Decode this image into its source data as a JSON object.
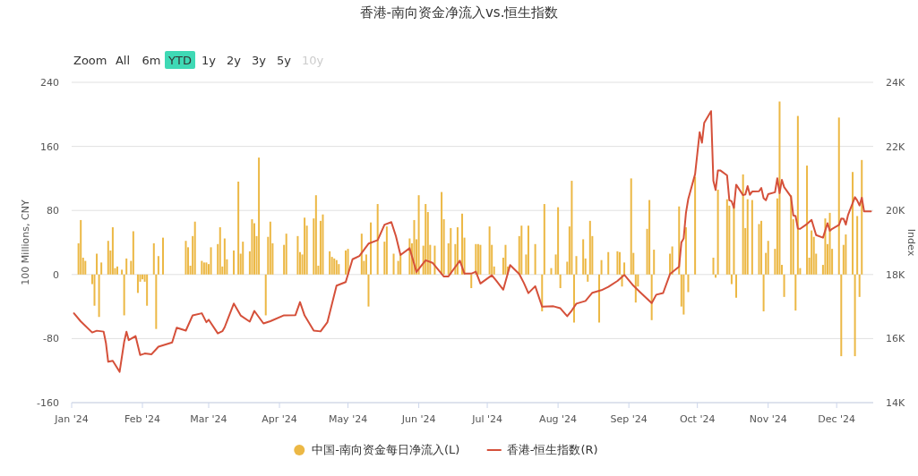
{
  "chart_data": {
    "type": "bar",
    "title": "香港-南向资金净流入vs.恒生指数",
    "annotations": [
      "Zoom",
      "All",
      "6m",
      "YTD",
      "1y",
      "2y",
      "3y",
      "5y",
      "10y"
    ],
    "ylabel": "100 Millions, CNY",
    "y2label": "Index",
    "xlim": [
      "2024-01-01",
      "2024-12-17"
    ],
    "xticks": [
      {
        "value": "2024-01-01",
        "label": "Jan '24"
      },
      {
        "value": "2024-02-01",
        "label": "Feb '24"
      },
      {
        "value": "2024-03-01",
        "label": "Mar '24"
      },
      {
        "value": "2024-04-01",
        "label": "Apr '24"
      },
      {
        "value": "2024-05-01",
        "label": "May '24"
      },
      {
        "value": "2024-06-01",
        "label": "Jun '24"
      },
      {
        "value": "2024-07-01",
        "label": "Jul '24"
      },
      {
        "value": "2024-08-01",
        "label": "Aug '24"
      },
      {
        "value": "2024-09-01",
        "label": "Sep '24"
      },
      {
        "value": "2024-10-01",
        "label": "Oct '24"
      },
      {
        "value": "2024-11-01",
        "label": "Nov '24"
      },
      {
        "value": "2024-12-01",
        "label": "Dec '24"
      }
    ],
    "ylim": [
      -160,
      240
    ],
    "yticks": [
      -160,
      -80,
      0,
      80,
      160,
      240
    ],
    "y2lim": [
      14000,
      24000
    ],
    "y2ticks": [
      {
        "value": 14000,
        "label": "14K"
      },
      {
        "value": 16000,
        "label": "16K"
      },
      {
        "value": 18000,
        "label": "18K"
      },
      {
        "value": 20000,
        "label": "20K"
      },
      {
        "value": 22000,
        "label": "22K"
      },
      {
        "value": 24000,
        "label": "24K"
      }
    ],
    "grid": "y",
    "legend": "bottom",
    "series": [
      {
        "name": "中国-南向资金每日净流入(L)",
        "color": "#ecb845",
        "x": [
          "2024-01-04",
          "2024-01-05",
          "2024-01-06",
          "2024-01-07",
          "2024-01-10",
          "2024-01-11",
          "2024-01-12",
          "2024-01-13",
          "2024-01-14",
          "2024-01-17",
          "2024-01-18",
          "2024-01-19",
          "2024-01-20",
          "2024-01-21",
          "2024-01-23",
          "2024-01-24",
          "2024-01-25",
          "2024-01-27",
          "2024-01-28",
          "2024-01-30",
          "2024-01-31",
          "2024-02-01",
          "2024-02-02",
          "2024-02-03",
          "2024-02-06",
          "2024-02-07",
          "2024-02-08",
          "2024-02-10",
          "2024-02-20",
          "2024-02-21",
          "2024-02-22",
          "2024-02-23",
          "2024-02-24",
          "2024-02-27",
          "2024-02-28",
          "2024-02-29",
          "2024-03-01",
          "2024-03-02",
          "2024-03-05",
          "2024-03-06",
          "2024-03-07",
          "2024-03-08",
          "2024-03-09",
          "2024-03-12",
          "2024-03-14",
          "2024-03-15",
          "2024-03-16",
          "2024-03-19",
          "2024-03-20",
          "2024-03-21",
          "2024-03-22",
          "2024-03-23",
          "2024-03-26",
          "2024-03-27",
          "2024-03-28",
          "2024-03-29",
          "2024-04-03",
          "2024-04-04",
          "2024-04-09",
          "2024-04-10",
          "2024-04-11",
          "2024-04-12",
          "2024-04-13",
          "2024-04-16",
          "2024-04-17",
          "2024-04-18",
          "2024-04-19",
          "2024-04-20",
          "2024-04-23",
          "2024-04-24",
          "2024-04-25",
          "2024-04-26",
          "2024-04-27",
          "2024-04-30",
          "2024-05-01",
          "2024-05-07",
          "2024-05-08",
          "2024-05-09",
          "2024-05-10",
          "2024-05-11",
          "2024-05-14",
          "2024-05-17",
          "2024-05-18",
          "2024-05-21",
          "2024-05-23",
          "2024-05-24",
          "2024-05-28",
          "2024-05-29",
          "2024-05-30",
          "2024-05-31",
          "2024-06-01",
          "2024-06-03",
          "2024-06-04",
          "2024-06-05",
          "2024-06-06",
          "2024-06-08",
          "2024-06-11",
          "2024-06-12",
          "2024-06-14",
          "2024-06-15",
          "2024-06-17",
          "2024-06-18",
          "2024-06-20",
          "2024-06-21",
          "2024-06-24",
          "2024-06-26",
          "2024-06-27",
          "2024-06-28",
          "2024-07-02",
          "2024-07-03",
          "2024-07-04",
          "2024-07-08",
          "2024-07-09",
          "2024-07-10",
          "2024-07-15",
          "2024-07-16",
          "2024-07-18",
          "2024-07-19",
          "2024-07-22",
          "2024-07-25",
          "2024-07-26",
          "2024-07-29",
          "2024-07-31",
          "2024-08-01",
          "2024-08-02",
          "2024-08-05",
          "2024-08-06",
          "2024-08-07",
          "2024-08-08",
          "2024-08-09",
          "2024-08-12",
          "2024-08-13",
          "2024-08-14",
          "2024-08-15",
          "2024-08-16",
          "2024-08-19",
          "2024-08-20",
          "2024-08-23",
          "2024-08-27",
          "2024-08-28",
          "2024-08-29",
          "2024-08-30",
          "2024-09-02",
          "2024-09-03",
          "2024-09-04",
          "2024-09-05",
          "2024-09-09",
          "2024-09-10",
          "2024-09-11",
          "2024-09-12",
          "2024-09-19",
          "2024-09-20",
          "2024-09-23",
          "2024-09-24",
          "2024-09-25",
          "2024-09-26",
          "2024-09-27",
          "2024-09-30",
          "2024-10-08",
          "2024-10-09",
          "2024-10-10",
          "2024-10-14",
          "2024-10-15",
          "2024-10-16",
          "2024-10-17",
          "2024-10-18",
          "2024-10-21",
          "2024-10-22",
          "2024-10-23",
          "2024-10-25",
          "2024-10-28",
          "2024-10-29",
          "2024-10-30",
          "2024-10-31",
          "2024-11-01",
          "2024-11-04",
          "2024-11-05",
          "2024-11-06",
          "2024-11-07",
          "2024-11-08",
          "2024-11-11",
          "2024-11-12",
          "2024-11-13",
          "2024-11-14",
          "2024-11-15",
          "2024-11-18",
          "2024-11-19",
          "2024-11-20",
          "2024-11-21",
          "2024-11-22",
          "2024-11-25",
          "2024-11-26",
          "2024-11-27",
          "2024-11-28",
          "2024-11-29",
          "2024-12-02",
          "2024-12-03",
          "2024-12-04",
          "2024-12-05",
          "2024-12-08",
          "2024-12-09",
          "2024-12-10",
          "2024-12-11",
          "2024-12-12"
        ],
        "values": [
          39,
          68,
          21,
          17,
          -12,
          -39,
          26,
          -53,
          15,
          42,
          30,
          59,
          8,
          10,
          6,
          -51,
          20,
          17,
          54,
          -23,
          -9,
          -6,
          -9,
          -39,
          39,
          -68,
          23,
          46,
          42,
          34,
          11,
          48,
          66,
          17,
          15,
          15,
          13,
          34,
          38,
          59,
          10,
          45,
          19,
          30,
          116,
          26,
          41,
          29,
          69,
          64,
          48,
          146,
          -51,
          47,
          66,
          39,
          37,
          51,
          48,
          28,
          25,
          71,
          61,
          70,
          99,
          11,
          67,
          75,
          29,
          22,
          20,
          18,
          13,
          30,
          32,
          51,
          17,
          25,
          -40,
          65,
          88,
          41,
          60,
          26,
          17,
          25,
          45,
          39,
          68,
          44,
          99,
          36,
          88,
          78,
          37,
          36,
          103,
          69,
          39,
          58,
          38,
          59,
          76,
          46,
          -17,
          38,
          38,
          37,
          60,
          37,
          10,
          21,
          37,
          10,
          48,
          61,
          25,
          61,
          38,
          -46,
          88,
          8,
          25,
          84,
          -17,
          16,
          60,
          117,
          -60,
          23,
          44,
          20,
          -9,
          67,
          48,
          -60,
          18,
          28,
          29,
          28,
          -15,
          15,
          120,
          27,
          -35,
          -15,
          57,
          93,
          -57,
          31,
          26,
          35,
          85,
          -40,
          -50,
          59,
          -22,
          122,
          21,
          -4,
          106,
          94,
          86,
          -12,
          86,
          -29,
          125,
          58,
          94,
          93,
          63,
          67,
          -46,
          27,
          42,
          32,
          95,
          216,
          12,
          -28,
          99,
          69,
          -45,
          198,
          8,
          136,
          21,
          55,
          47,
          26,
          12,
          70,
          38,
          77,
          32,
          196,
          -102,
          37,
          50,
          128,
          -102,
          73,
          -28,
          143
        ]
      },
      {
        "name": "香港-恒生指数(R)",
        "type": "line",
        "axis": "y2",
        "color": "#d5503a",
        "x": [
          "2024-01-02",
          "2024-01-05",
          "2024-01-10",
          "2024-01-12",
          "2024-01-15",
          "2024-01-16",
          "2024-01-17",
          "2024-01-19",
          "2024-01-22",
          "2024-01-24",
          "2024-01-25",
          "2024-01-26",
          "2024-01-29",
          "2024-01-31",
          "2024-02-02",
          "2024-02-05",
          "2024-02-08",
          "2024-02-14",
          "2024-02-16",
          "2024-02-20",
          "2024-02-23",
          "2024-02-27",
          "2024-02-29",
          "2024-03-01",
          "2024-03-05",
          "2024-03-07",
          "2024-03-08",
          "2024-03-12",
          "2024-03-15",
          "2024-03-19",
          "2024-03-21",
          "2024-03-25",
          "2024-03-28",
          "2024-04-03",
          "2024-04-08",
          "2024-04-10",
          "2024-04-12",
          "2024-04-16",
          "2024-04-19",
          "2024-04-22",
          "2024-04-26",
          "2024-04-30",
          "2024-05-03",
          "2024-05-06",
          "2024-05-10",
          "2024-05-14",
          "2024-05-17",
          "2024-05-20",
          "2024-05-22",
          "2024-05-24",
          "2024-05-28",
          "2024-05-31",
          "2024-06-04",
          "2024-06-07",
          "2024-06-12",
          "2024-06-14",
          "2024-06-19",
          "2024-06-21",
          "2024-06-24",
          "2024-06-26",
          "2024-06-28",
          "2024-07-03",
          "2024-07-05",
          "2024-07-08",
          "2024-07-11",
          "2024-07-15",
          "2024-07-17",
          "2024-07-19",
          "2024-07-22",
          "2024-07-25",
          "2024-07-30",
          "2024-08-02",
          "2024-08-05",
          "2024-08-07",
          "2024-08-09",
          "2024-08-13",
          "2024-08-16",
          "2024-08-20",
          "2024-08-23",
          "2024-08-27",
          "2024-08-30",
          "2024-09-03",
          "2024-09-06",
          "2024-09-11",
          "2024-09-13",
          "2024-09-16",
          "2024-09-19",
          "2024-09-23",
          "2024-09-24",
          "2024-09-25",
          "2024-09-26",
          "2024-09-27",
          "2024-09-30",
          "2024-10-02",
          "2024-10-03",
          "2024-10-04",
          "2024-10-07",
          "2024-10-08",
          "2024-10-09",
          "2024-10-10",
          "2024-10-11",
          "2024-10-14",
          "2024-10-15",
          "2024-10-16",
          "2024-10-17",
          "2024-10-18",
          "2024-10-21",
          "2024-10-22",
          "2024-10-23",
          "2024-10-24",
          "2024-10-25",
          "2024-10-28",
          "2024-10-29",
          "2024-10-30",
          "2024-10-31",
          "2024-11-01",
          "2024-11-04",
          "2024-11-05",
          "2024-11-06",
          "2024-11-07",
          "2024-11-08",
          "2024-11-11",
          "2024-11-12",
          "2024-11-13",
          "2024-11-14",
          "2024-11-15",
          "2024-11-18",
          "2024-11-20",
          "2024-11-22",
          "2024-11-25",
          "2024-11-27",
          "2024-11-28",
          "2024-11-29",
          "2024-12-02",
          "2024-12-03",
          "2024-12-04",
          "2024-12-05",
          "2024-12-06",
          "2024-12-09",
          "2024-12-10",
          "2024-12-11",
          "2024-12-12",
          "2024-12-13",
          "2024-12-16"
        ],
        "values": [
          16789,
          16535,
          16190,
          16245,
          16217,
          15866,
          15277,
          15308,
          14961,
          15899,
          16212,
          15952,
          16077,
          15485,
          15533,
          15510,
          15747,
          15879,
          16340,
          16248,
          16726,
          16790,
          16511,
          16589,
          16162,
          16230,
          16353,
          17093,
          16721,
          16529,
          16863,
          16473,
          16541,
          16725,
          16732,
          17139,
          16721,
          16249,
          16224,
          16511,
          17651,
          17763,
          18476,
          18578,
          18964,
          19073,
          19554,
          19636,
          19195,
          18609,
          18821,
          18080,
          18444,
          18366,
          17937,
          17942,
          18431,
          18028,
          18027,
          18090,
          17719,
          17978,
          17800,
          17525,
          18293,
          18015,
          17739,
          17418,
          17635,
          16997,
          17007,
          16945,
          16698,
          16877,
          17090,
          17174,
          17430,
          17511,
          17612,
          17798,
          17989,
          17651,
          17444,
          17108,
          17369,
          17422,
          18013,
          18247,
          19000,
          19129,
          19924,
          20354,
          21133,
          22443,
          22114,
          22737,
          23100,
          20926,
          20637,
          21252,
          21252,
          21093,
          20318,
          20286,
          20079,
          20804,
          20478,
          20498,
          20760,
          20489,
          20590,
          20599,
          20701,
          20381,
          20317,
          20506,
          20567,
          21006,
          20538,
          20953,
          20728,
          20426,
          19846,
          19823,
          19435,
          19426,
          19577,
          19705,
          19229,
          19151,
          19603,
          19366,
          19424,
          19550,
          19746,
          19742,
          19560,
          19865,
          20414,
          20311,
          20155,
          20397,
          19971,
          19971
        ]
      }
    ]
  }
}
